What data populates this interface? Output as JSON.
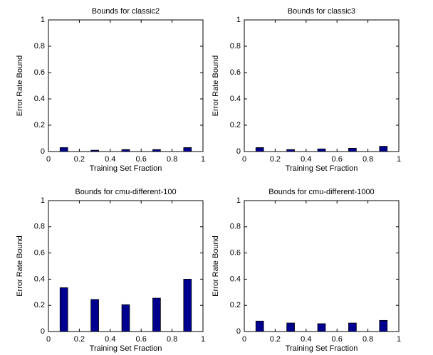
{
  "chart_data": [
    {
      "type": "bar",
      "title": "Bounds for classic2",
      "xlabel": "Training Set Fraction",
      "ylabel": "Error Rate Bound",
      "x": [
        0.1,
        0.3,
        0.5,
        0.7,
        0.9
      ],
      "values": [
        0.03,
        0.01,
        0.015,
        0.015,
        0.03
      ],
      "color": "#00008f",
      "xlim": [
        0,
        1
      ],
      "ylim": [
        0,
        1
      ],
      "xticks": [
        0,
        0.2,
        0.4,
        0.6,
        0.8,
        1
      ],
      "yticks": [
        0,
        0.2,
        0.4,
        0.6,
        0.8,
        1
      ]
    },
    {
      "type": "bar",
      "title": "Bounds for classic3",
      "xlabel": "Training Set Fraction",
      "ylabel": "Error Rate Bound",
      "x": [
        0.1,
        0.3,
        0.5,
        0.7,
        0.9
      ],
      "values": [
        0.03,
        0.015,
        0.02,
        0.025,
        0.04
      ],
      "color": "#00008f",
      "xlim": [
        0,
        1
      ],
      "ylim": [
        0,
        1
      ],
      "xticks": [
        0,
        0.2,
        0.4,
        0.6,
        0.8,
        1
      ],
      "yticks": [
        0,
        0.2,
        0.4,
        0.6,
        0.8,
        1
      ]
    },
    {
      "type": "bar",
      "title": "Bounds for cmu-different-100",
      "xlabel": "Training Set Fraction",
      "ylabel": "Error Rate Bound",
      "x": [
        0.1,
        0.3,
        0.5,
        0.7,
        0.9
      ],
      "values": [
        0.335,
        0.245,
        0.205,
        0.255,
        0.4
      ],
      "color": "#00008f",
      "xlim": [
        0,
        1
      ],
      "ylim": [
        0,
        1
      ],
      "xticks": [
        0,
        0.2,
        0.4,
        0.6,
        0.8,
        1
      ],
      "yticks": [
        0,
        0.2,
        0.4,
        0.6,
        0.8,
        1
      ]
    },
    {
      "type": "bar",
      "title": "Bounds for cmu-different-1000",
      "xlabel": "Training Set Fraction",
      "ylabel": "Error Rate Bound",
      "x": [
        0.1,
        0.3,
        0.5,
        0.7,
        0.9
      ],
      "values": [
        0.08,
        0.065,
        0.06,
        0.065,
        0.085
      ],
      "color": "#00008f",
      "xlim": [
        0,
        1
      ],
      "ylim": [
        0,
        1
      ],
      "xticks": [
        0,
        0.2,
        0.4,
        0.6,
        0.8,
        1
      ],
      "yticks": [
        0,
        0.2,
        0.4,
        0.6,
        0.8,
        1
      ]
    }
  ]
}
